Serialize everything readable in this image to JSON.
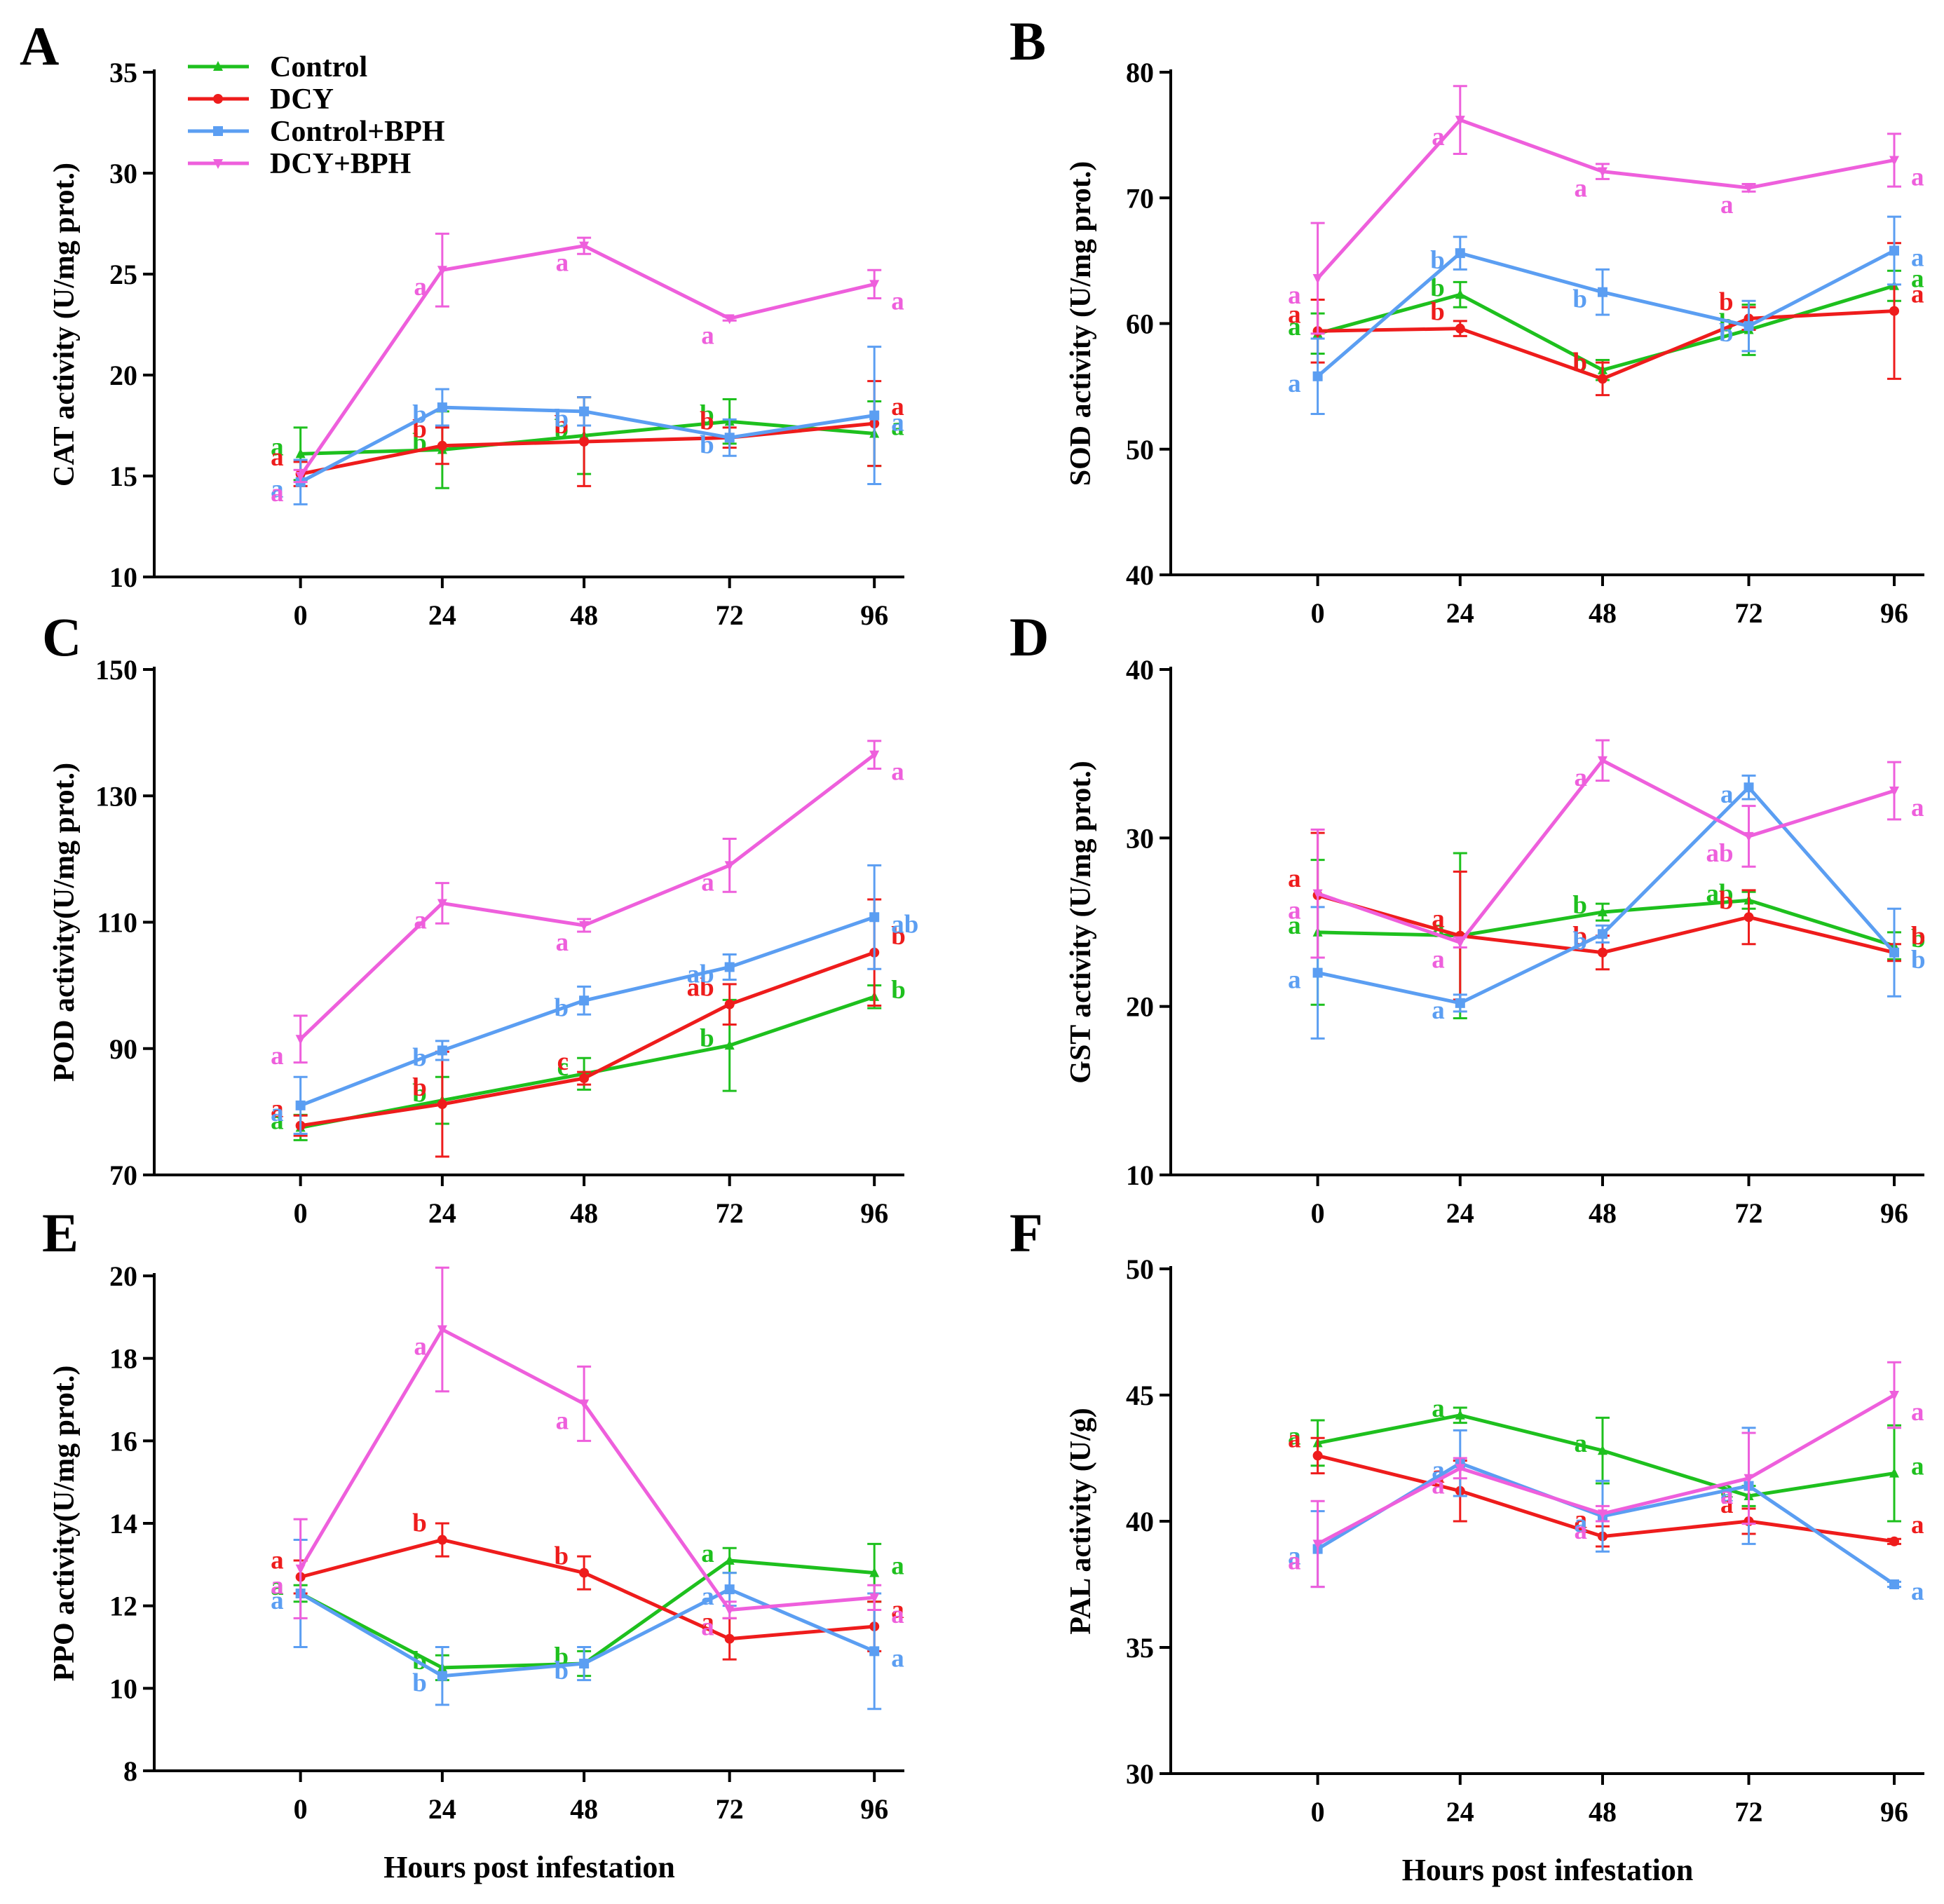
{
  "figure": {
    "xlabel": "Hours post infestation",
    "legend": [
      {
        "name": "Control",
        "color": "#1ec01e",
        "marker": "triangle-up"
      },
      {
        "name": "DCY",
        "color": "#ee1c1c",
        "marker": "circle"
      },
      {
        "name": "Control+BPH",
        "color": "#5b9ef2",
        "marker": "square"
      },
      {
        "name": "DCY+BPH",
        "color": "#ee5fdc",
        "marker": "triangle-down"
      }
    ]
  },
  "chart_data": [
    {
      "panel": "A",
      "type": "line",
      "ylabel": "CAT activity (U/mg prot.)",
      "xlabel": "",
      "ylim": [
        10,
        35
      ],
      "yticks": [
        10,
        15,
        20,
        25,
        30,
        35
      ],
      "x": [
        0,
        24,
        48,
        72,
        96
      ],
      "series": [
        {
          "name": "Control",
          "color": "#1ec01e",
          "values": [
            16.1,
            16.3,
            17.0,
            17.7,
            17.1
          ],
          "errors": [
            1.3,
            1.9,
            1.9,
            1.1,
            1.6
          ],
          "letters": [
            "a",
            "b",
            "b",
            "b",
            "a"
          ]
        },
        {
          "name": "DCY",
          "color": "#ee1c1c",
          "values": [
            15.1,
            16.5,
            16.7,
            16.9,
            17.6
          ],
          "errors": [
            0.6,
            0.9,
            2.2,
            0.5,
            2.1
          ],
          "letters": [
            "a",
            "b",
            "b",
            "b",
            "a"
          ]
        },
        {
          "name": "Control+BPH",
          "color": "#5b9ef2",
          "values": [
            14.7,
            18.4,
            18.2,
            16.9,
            18.0
          ],
          "errors": [
            1.1,
            0.9,
            0.7,
            0.9,
            3.4
          ],
          "letters": [
            "a",
            "b",
            "b",
            "b",
            "a"
          ]
        },
        {
          "name": "DCY+BPH",
          "color": "#ee5fdc",
          "values": [
            15.0,
            25.2,
            26.4,
            22.8,
            24.5
          ],
          "errors": [
            0.3,
            1.8,
            0.4,
            0.1,
            0.7
          ],
          "letters": [
            "a",
            "a",
            "a",
            "a",
            "a"
          ]
        }
      ]
    },
    {
      "panel": "B",
      "type": "line",
      "ylabel": "SOD  activity (U/mg prot.)",
      "xlabel": "",
      "ylim": [
        40,
        80
      ],
      "yticks": [
        40,
        50,
        60,
        70,
        80
      ],
      "x": [
        0,
        24,
        48,
        72,
        96
      ],
      "series": [
        {
          "name": "Control",
          "color": "#1ec01e",
          "values": [
            59.2,
            62.3,
            56.3,
            59.5,
            63.0
          ],
          "errors": [
            1.6,
            1.0,
            0.8,
            2.0,
            1.2
          ],
          "letters": [
            "a",
            "b",
            "b",
            "b",
            "a"
          ]
        },
        {
          "name": "DCY",
          "color": "#ee1c1c",
          "values": [
            59.4,
            59.6,
            55.6,
            60.4,
            61.0
          ],
          "errors": [
            2.5,
            0.6,
            1.3,
            0.9,
            5.4
          ],
          "letters": [
            "a",
            "b",
            "b",
            "b",
            "a"
          ]
        },
        {
          "name": "Control+BPH",
          "color": "#5b9ef2",
          "values": [
            55.8,
            65.6,
            62.5,
            59.8,
            65.8
          ],
          "errors": [
            3.0,
            1.3,
            1.8,
            2.0,
            2.7
          ],
          "letters": [
            "a",
            "b",
            "b",
            "b",
            "a"
          ]
        },
        {
          "name": "DCY+BPH",
          "color": "#ee5fdc",
          "values": [
            63.6,
            76.2,
            72.1,
            70.8,
            73.0
          ],
          "errors": [
            4.4,
            2.7,
            0.6,
            0.3,
            2.1
          ],
          "letters": [
            "a",
            "a",
            "a",
            "a",
            "a"
          ]
        }
      ]
    },
    {
      "panel": "C",
      "type": "line",
      "ylabel": "POD activity(U/mg prot.)",
      "xlabel": "",
      "ylim": [
        70,
        150
      ],
      "yticks": [
        70,
        90,
        110,
        130,
        150
      ],
      "x": [
        0,
        24,
        48,
        72,
        96
      ],
      "series": [
        {
          "name": "Control",
          "color": "#1ec01e",
          "values": [
            77.5,
            81.8,
            86.0,
            90.5,
            98.2
          ],
          "errors": [
            2.0,
            3.7,
            2.5,
            7.2,
            1.8
          ],
          "letters": [
            "a",
            "b",
            "c",
            "b",
            "b"
          ]
        },
        {
          "name": "DCY",
          "color": "#ee1c1c",
          "values": [
            77.8,
            81.2,
            85.3,
            97.0,
            105.2
          ],
          "errors": [
            1.6,
            8.3,
            1.0,
            3.2,
            8.4
          ],
          "letters": [
            "a",
            "b",
            "c",
            "ab",
            "b"
          ]
        },
        {
          "name": "Control+BPH",
          "color": "#5b9ef2",
          "values": [
            81.0,
            89.7,
            97.6,
            102.9,
            110.8
          ],
          "errors": [
            4.5,
            1.5,
            2.2,
            2.0,
            8.2
          ],
          "letters": [
            "a",
            "b",
            "b",
            "ab",
            "ab"
          ]
        },
        {
          "name": "DCY+BPH",
          "color": "#ee5fdc",
          "values": [
            91.5,
            113.0,
            109.5,
            119.0,
            136.5
          ],
          "errors": [
            3.7,
            3.2,
            1.0,
            4.2,
            2.2
          ],
          "letters": [
            "a",
            "a",
            "a",
            "a",
            "a"
          ]
        }
      ]
    },
    {
      "panel": "D",
      "type": "line",
      "ylabel": "GST activity (U/mg prot.)",
      "xlabel": "",
      "ylim": [
        10,
        40
      ],
      "yticks": [
        10,
        20,
        30,
        40
      ],
      "x": [
        0,
        24,
        48,
        72,
        96
      ],
      "series": [
        {
          "name": "Control",
          "color": "#1ec01e",
          "values": [
            24.4,
            24.2,
            25.6,
            26.3,
            23.6
          ],
          "errors": [
            4.3,
            4.9,
            0.5,
            0.5,
            0.8
          ],
          "letters": [
            "a",
            "a",
            "b",
            "ab",
            "b"
          ]
        },
        {
          "name": "DCY",
          "color": "#ee1c1c",
          "values": [
            26.6,
            24.2,
            23.2,
            25.3,
            23.2
          ],
          "errors": [
            3.7,
            3.8,
            1.0,
            1.6,
            0.5
          ],
          "letters": [
            "a",
            "a",
            "b",
            "b",
            "b"
          ]
        },
        {
          "name": "Control+BPH",
          "color": "#5b9ef2",
          "values": [
            22.0,
            20.2,
            24.3,
            33.0,
            23.2
          ],
          "errors": [
            3.9,
            0.5,
            0.5,
            0.7,
            2.6
          ],
          "letters": [
            "a",
            "a",
            "b",
            "a",
            "b"
          ]
        },
        {
          "name": "DCY+BPH",
          "color": "#ee5fdc",
          "values": [
            26.7,
            23.8,
            34.6,
            30.1,
            32.8
          ],
          "errors": [
            3.8,
            0.3,
            1.2,
            1.8,
            1.7
          ],
          "letters": [
            "a",
            "a",
            "a",
            "ab",
            "a"
          ]
        }
      ]
    },
    {
      "panel": "E",
      "type": "line",
      "ylabel": "PPO activity(U/mg prot.)",
      "xlabel": "Hours post infestation",
      "ylim": [
        8,
        20
      ],
      "yticks": [
        8,
        10,
        12,
        14,
        16,
        18,
        20
      ],
      "x": [
        0,
        24,
        48,
        72,
        96
      ],
      "series": [
        {
          "name": "Control",
          "color": "#1ec01e",
          "values": [
            12.3,
            10.5,
            10.6,
            13.1,
            12.8
          ],
          "errors": [
            0.2,
            0.3,
            0.3,
            0.3,
            0.7
          ],
          "letters": [
            "a",
            "b",
            "b",
            "a",
            "a"
          ]
        },
        {
          "name": "DCY",
          "color": "#ee1c1c",
          "values": [
            12.7,
            13.6,
            12.8,
            11.2,
            11.5
          ],
          "errors": [
            0.4,
            0.4,
            0.4,
            0.5,
            0.6
          ],
          "letters": [
            "a",
            "b",
            "b",
            "a",
            "a"
          ]
        },
        {
          "name": "Control+BPH",
          "color": "#5b9ef2",
          "values": [
            12.3,
            10.3,
            10.6,
            12.4,
            10.9
          ],
          "errors": [
            1.3,
            0.7,
            0.4,
            0.4,
            1.4
          ],
          "letters": [
            "a",
            "b",
            "b",
            "a",
            "a"
          ]
        },
        {
          "name": "DCY+BPH",
          "color": "#ee5fdc",
          "values": [
            12.9,
            18.7,
            16.9,
            11.9,
            12.2
          ],
          "errors": [
            1.2,
            1.5,
            0.9,
            0.2,
            0.3
          ],
          "letters": [
            "a",
            "a",
            "a",
            "a",
            "a"
          ]
        }
      ]
    },
    {
      "panel": "F",
      "type": "line",
      "ylabel": "PAL activity (U/g)",
      "xlabel": "Hours post infestation",
      "ylim": [
        30,
        50
      ],
      "yticks": [
        30,
        35,
        40,
        45,
        50
      ],
      "x": [
        0,
        24,
        48,
        72,
        96
      ],
      "series": [
        {
          "name": "Control",
          "color": "#1ec01e",
          "values": [
            43.1,
            44.2,
            42.8,
            41.0,
            41.9
          ],
          "errors": [
            0.9,
            0.3,
            1.3,
            0.4,
            1.9
          ],
          "letters": [
            "a",
            "a",
            "a",
            "a",
            "a"
          ]
        },
        {
          "name": "DCY",
          "color": "#ee1c1c",
          "values": [
            42.6,
            41.2,
            39.4,
            40.0,
            39.2
          ],
          "errors": [
            0.7,
            1.2,
            0.4,
            0.5,
            0.1
          ],
          "letters": [
            "a",
            "a",
            "a",
            "a",
            "a"
          ]
        },
        {
          "name": "Control+BPH",
          "color": "#5b9ef2",
          "values": [
            38.9,
            42.3,
            40.2,
            41.4,
            37.5
          ],
          "errors": [
            1.5,
            1.3,
            1.4,
            2.3,
            0.1
          ],
          "letters": [
            "a",
            "a",
            "a",
            "a",
            "a"
          ]
        },
        {
          "name": "DCY+BPH",
          "color": "#ee5fdc",
          "values": [
            39.1,
            42.1,
            40.3,
            41.7,
            45.0
          ],
          "errors": [
            1.7,
            0.4,
            0.3,
            1.8,
            1.3
          ],
          "letters": [
            "a",
            "a",
            "a",
            "a",
            "a"
          ]
        }
      ]
    }
  ]
}
